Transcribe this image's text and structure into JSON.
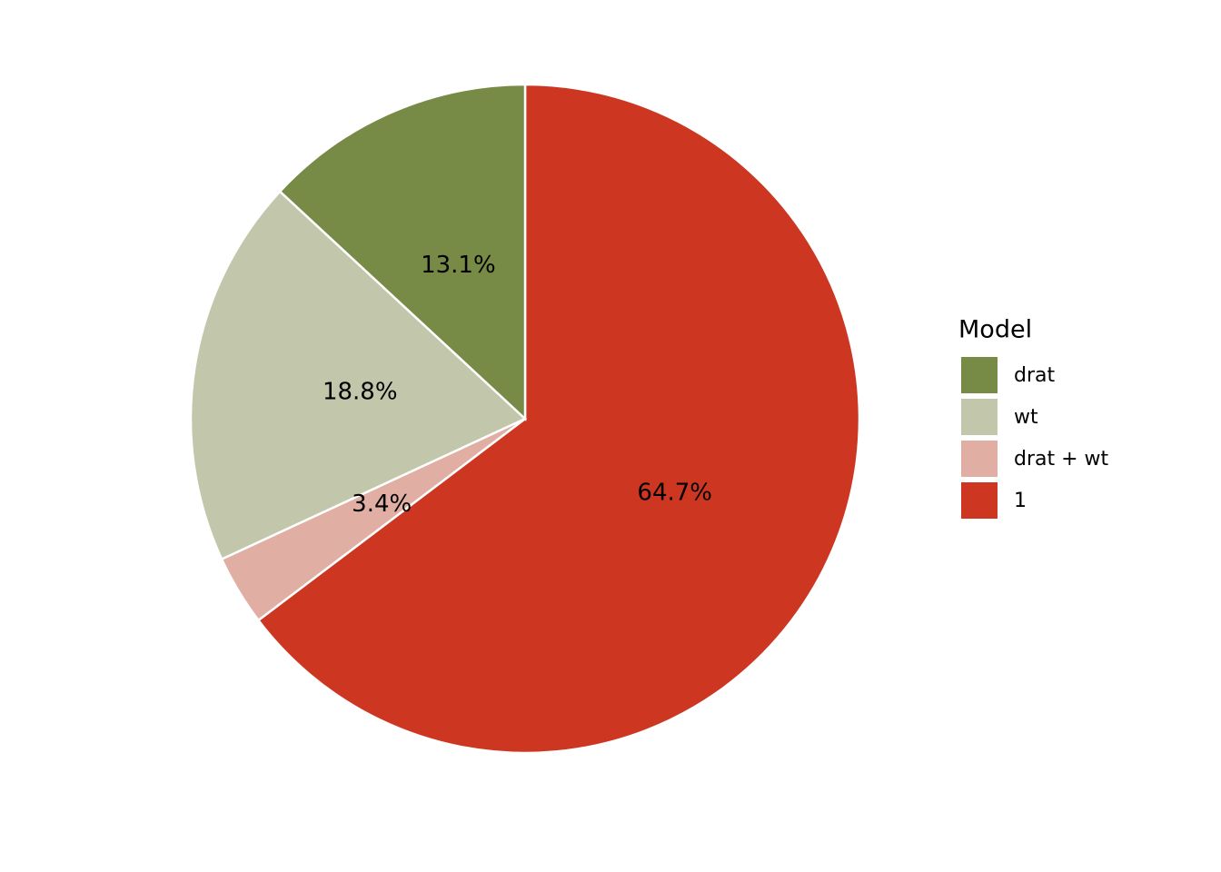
{
  "chart_data": {
    "type": "pie",
    "legend_title": "Model",
    "categories": [
      "drat",
      "wt",
      "drat + wt",
      "1"
    ],
    "values": [
      13.1,
      18.8,
      3.4,
      64.7
    ],
    "value_labels": [
      "13.1%",
      "18.8%",
      "3.4%",
      "64.7%"
    ],
    "colors": [
      "#778a46",
      "#c2c7ab",
      "#e0aea3",
      "#cd3722"
    ],
    "legend": "right"
  }
}
